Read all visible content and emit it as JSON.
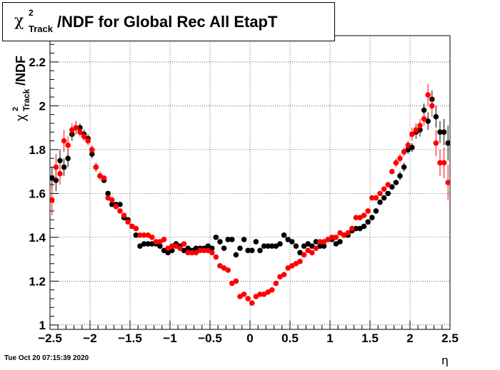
{
  "title": {
    "symbol": "χ",
    "superscript": "2",
    "subscript": "Track",
    "text": "/NDF for Global Rec All EtapT"
  },
  "footer": {
    "date": "Tue Oct 20 07:15:39 2020"
  },
  "chart_data": {
    "type": "scatter",
    "xlabel": "η",
    "ylabel": "χ²_Track/NDF",
    "xlim": [
      -2.5,
      2.5
    ],
    "ylim": [
      0.98,
      2.32
    ],
    "x_ticks": [
      -2.5,
      -2,
      -1.5,
      -1,
      -0.5,
      0,
      0.5,
      1,
      1.5,
      2,
      2.5
    ],
    "x_tick_labels": [
      "−2.5",
      "−2",
      "−1.5",
      "−1",
      "−0.5",
      "0",
      "0.5",
      "1",
      "1.5",
      "2",
      "2.5"
    ],
    "y_ticks": [
      1,
      1.2,
      1.4,
      1.6,
      1.8,
      2,
      2.2
    ],
    "y_tick_labels": [
      "1",
      "1.2",
      "1.4",
      "1.6",
      "1.8",
      "2",
      "2.2"
    ],
    "grid": true,
    "colors": {
      "series_black": "#000000",
      "series_red": "#ff0000",
      "grid": "#000000"
    },
    "series": [
      {
        "color": "#000000",
        "points": [
          [
            -2.475,
            1.67,
            0.05
          ],
          [
            -2.425,
            1.66,
            0.05
          ],
          [
            -2.375,
            1.75,
            0.05
          ],
          [
            -2.325,
            1.72,
            0.04
          ],
          [
            -2.275,
            1.76,
            0.04
          ],
          [
            -2.225,
            1.87,
            0.03
          ],
          [
            -2.175,
            1.9,
            0.03
          ],
          [
            -2.125,
            1.9,
            0.02
          ],
          [
            -2.075,
            1.87,
            0.02
          ],
          [
            -2.025,
            1.85,
            0.02
          ],
          [
            -1.975,
            1.78,
            0.02
          ],
          [
            -1.925,
            1.72,
            0.02
          ],
          [
            -1.875,
            1.68,
            0.02
          ],
          [
            -1.825,
            1.66,
            0.01
          ],
          [
            -1.775,
            1.6,
            0.01
          ],
          [
            -1.725,
            1.55,
            0.01
          ],
          [
            -1.675,
            1.55,
            0.01
          ],
          [
            -1.625,
            1.55,
            0.01
          ],
          [
            -1.575,
            1.49,
            0.01
          ],
          [
            -1.525,
            1.48,
            0.01
          ],
          [
            -1.475,
            1.45,
            0.01
          ],
          [
            -1.425,
            1.41,
            0.01
          ],
          [
            -1.375,
            1.36,
            0.01
          ],
          [
            -1.325,
            1.37,
            0.01
          ],
          [
            -1.275,
            1.37,
            0.01
          ],
          [
            -1.225,
            1.37,
            0.01
          ],
          [
            -1.175,
            1.37,
            0.01
          ],
          [
            -1.125,
            1.36,
            0.01
          ],
          [
            -1.075,
            1.34,
            0.01
          ],
          [
            -1.025,
            1.33,
            0.01
          ],
          [
            -0.975,
            1.34,
            0.01
          ],
          [
            -0.925,
            1.37,
            0.01
          ],
          [
            -0.875,
            1.36,
            0.01
          ],
          [
            -0.825,
            1.34,
            0.01
          ],
          [
            -0.775,
            1.35,
            0.01
          ],
          [
            -0.725,
            1.34,
            0.01
          ],
          [
            -0.675,
            1.35,
            0.01
          ],
          [
            -0.625,
            1.35,
            0.01
          ],
          [
            -0.575,
            1.35,
            0.01
          ],
          [
            -0.525,
            1.36,
            0.01
          ],
          [
            -0.475,
            1.35,
            0.01
          ],
          [
            -0.425,
            1.4,
            0.01
          ],
          [
            -0.375,
            1.38,
            0.01
          ],
          [
            -0.325,
            1.35,
            0.01
          ],
          [
            -0.275,
            1.39,
            0.01
          ],
          [
            -0.225,
            1.39,
            0.01
          ],
          [
            -0.175,
            1.32,
            0.01
          ],
          [
            -0.125,
            1.35,
            0.01
          ],
          [
            -0.075,
            1.39,
            0.01
          ],
          [
            -0.025,
            1.34,
            0.01
          ],
          [
            0.025,
            1.34,
            0.01
          ],
          [
            0.075,
            1.38,
            0.01
          ],
          [
            0.125,
            1.34,
            0.01
          ],
          [
            0.175,
            1.36,
            0.01
          ],
          [
            0.225,
            1.36,
            0.01
          ],
          [
            0.275,
            1.36,
            0.01
          ],
          [
            0.325,
            1.36,
            0.01
          ],
          [
            0.375,
            1.37,
            0.01
          ],
          [
            0.425,
            1.41,
            0.01
          ],
          [
            0.475,
            1.39,
            0.01
          ],
          [
            0.525,
            1.38,
            0.01
          ],
          [
            0.575,
            1.36,
            0.01
          ],
          [
            0.625,
            1.33,
            0.01
          ],
          [
            0.675,
            1.36,
            0.01
          ],
          [
            0.725,
            1.37,
            0.01
          ],
          [
            0.775,
            1.36,
            0.01
          ],
          [
            0.825,
            1.38,
            0.01
          ],
          [
            0.875,
            1.36,
            0.01
          ],
          [
            0.925,
            1.36,
            0.01
          ],
          [
            0.975,
            1.39,
            0.01
          ],
          [
            1.025,
            1.39,
            0.01
          ],
          [
            1.075,
            1.37,
            0.01
          ],
          [
            1.125,
            1.38,
            0.01
          ],
          [
            1.175,
            1.41,
            0.01
          ],
          [
            1.225,
            1.41,
            0.01
          ],
          [
            1.275,
            1.43,
            0.01
          ],
          [
            1.325,
            1.44,
            0.01
          ],
          [
            1.375,
            1.44,
            0.01
          ],
          [
            1.425,
            1.45,
            0.01
          ],
          [
            1.475,
            1.47,
            0.01
          ],
          [
            1.525,
            1.49,
            0.01
          ],
          [
            1.575,
            1.52,
            0.01
          ],
          [
            1.625,
            1.56,
            0.01
          ],
          [
            1.675,
            1.58,
            0.01
          ],
          [
            1.725,
            1.6,
            0.01
          ],
          [
            1.775,
            1.63,
            0.01
          ],
          [
            1.825,
            1.65,
            0.01
          ],
          [
            1.875,
            1.68,
            0.02
          ],
          [
            1.925,
            1.72,
            0.02
          ],
          [
            1.975,
            1.8,
            0.02
          ],
          [
            2.025,
            1.81,
            0.02
          ],
          [
            2.075,
            1.88,
            0.03
          ],
          [
            2.125,
            1.89,
            0.03
          ],
          [
            2.175,
            1.98,
            0.03
          ],
          [
            2.225,
            1.93,
            0.04
          ],
          [
            2.275,
            2.03,
            0.04
          ],
          [
            2.325,
            1.95,
            0.05
          ],
          [
            2.375,
            1.88,
            0.05
          ],
          [
            2.425,
            1.88,
            0.06
          ],
          [
            2.475,
            1.83,
            0.08
          ]
        ]
      },
      {
        "color": "#ff0000",
        "points": [
          [
            -2.475,
            1.57,
            0.07
          ],
          [
            -2.425,
            1.72,
            0.06
          ],
          [
            -2.375,
            1.69,
            0.05
          ],
          [
            -2.325,
            1.84,
            0.05
          ],
          [
            -2.275,
            1.82,
            0.04
          ],
          [
            -2.225,
            1.89,
            0.03
          ],
          [
            -2.175,
            1.9,
            0.03
          ],
          [
            -2.125,
            1.88,
            0.02
          ],
          [
            -2.075,
            1.86,
            0.02
          ],
          [
            -2.025,
            1.84,
            0.02
          ],
          [
            -1.975,
            1.8,
            0.02
          ],
          [
            -1.925,
            1.72,
            0.02
          ],
          [
            -1.875,
            1.68,
            0.02
          ],
          [
            -1.825,
            1.67,
            0.01
          ],
          [
            -1.775,
            1.58,
            0.01
          ],
          [
            -1.725,
            1.57,
            0.01
          ],
          [
            -1.675,
            1.54,
            0.01
          ],
          [
            -1.625,
            1.52,
            0.01
          ],
          [
            -1.575,
            1.5,
            0.01
          ],
          [
            -1.525,
            1.47,
            0.01
          ],
          [
            -1.475,
            1.45,
            0.01
          ],
          [
            -1.425,
            1.44,
            0.01
          ],
          [
            -1.375,
            1.41,
            0.01
          ],
          [
            -1.325,
            1.41,
            0.01
          ],
          [
            -1.275,
            1.41,
            0.01
          ],
          [
            -1.225,
            1.4,
            0.01
          ],
          [
            -1.175,
            1.38,
            0.01
          ],
          [
            -1.125,
            1.38,
            0.01
          ],
          [
            -1.075,
            1.39,
            0.01
          ],
          [
            -1.025,
            1.35,
            0.01
          ],
          [
            -0.975,
            1.36,
            0.01
          ],
          [
            -0.925,
            1.36,
            0.01
          ],
          [
            -0.875,
            1.35,
            0.01
          ],
          [
            -0.825,
            1.37,
            0.01
          ],
          [
            -0.775,
            1.33,
            0.01
          ],
          [
            -0.725,
            1.33,
            0.01
          ],
          [
            -0.675,
            1.33,
            0.01
          ],
          [
            -0.625,
            1.34,
            0.01
          ],
          [
            -0.575,
            1.34,
            0.01
          ],
          [
            -0.525,
            1.34,
            0.01
          ],
          [
            -0.475,
            1.33,
            0.01
          ],
          [
            -0.425,
            1.31,
            0.01
          ],
          [
            -0.375,
            1.27,
            0.01
          ],
          [
            -0.325,
            1.26,
            0.01
          ],
          [
            -0.275,
            1.25,
            0.01
          ],
          [
            -0.225,
            1.19,
            0.01
          ],
          [
            -0.175,
            1.2,
            0.01
          ],
          [
            -0.125,
            1.13,
            0.01
          ],
          [
            -0.075,
            1.14,
            0.01
          ],
          [
            -0.025,
            1.12,
            0.01
          ],
          [
            0.025,
            1.1,
            0.01
          ],
          [
            0.075,
            1.13,
            0.01
          ],
          [
            0.125,
            1.14,
            0.01
          ],
          [
            0.175,
            1.14,
            0.01
          ],
          [
            0.225,
            1.15,
            0.01
          ],
          [
            0.275,
            1.16,
            0.01
          ],
          [
            0.325,
            1.19,
            0.01
          ],
          [
            0.375,
            1.22,
            0.01
          ],
          [
            0.425,
            1.23,
            0.01
          ],
          [
            0.475,
            1.26,
            0.01
          ],
          [
            0.525,
            1.27,
            0.01
          ],
          [
            0.575,
            1.28,
            0.01
          ],
          [
            0.625,
            1.29,
            0.01
          ],
          [
            0.675,
            1.32,
            0.01
          ],
          [
            0.725,
            1.34,
            0.01
          ],
          [
            0.775,
            1.33,
            0.01
          ],
          [
            0.825,
            1.35,
            0.01
          ],
          [
            0.875,
            1.38,
            0.01
          ],
          [
            0.925,
            1.38,
            0.01
          ],
          [
            0.975,
            1.39,
            0.01
          ],
          [
            1.025,
            1.4,
            0.01
          ],
          [
            1.075,
            1.4,
            0.01
          ],
          [
            1.125,
            1.42,
            0.01
          ],
          [
            1.175,
            1.41,
            0.01
          ],
          [
            1.225,
            1.42,
            0.01
          ],
          [
            1.275,
            1.44,
            0.01
          ],
          [
            1.325,
            1.49,
            0.01
          ],
          [
            1.375,
            1.49,
            0.01
          ],
          [
            1.425,
            1.5,
            0.01
          ],
          [
            1.475,
            1.52,
            0.01
          ],
          [
            1.525,
            1.58,
            0.01
          ],
          [
            1.575,
            1.58,
            0.01
          ],
          [
            1.625,
            1.6,
            0.01
          ],
          [
            1.675,
            1.62,
            0.01
          ],
          [
            1.725,
            1.64,
            0.01
          ],
          [
            1.775,
            1.7,
            0.01
          ],
          [
            1.825,
            1.74,
            0.02
          ],
          [
            1.875,
            1.76,
            0.02
          ],
          [
            1.925,
            1.79,
            0.02
          ],
          [
            1.975,
            1.82,
            0.02
          ],
          [
            2.025,
            1.87,
            0.03
          ],
          [
            2.075,
            1.89,
            0.03
          ],
          [
            2.125,
            1.91,
            0.03
          ],
          [
            2.175,
            1.94,
            0.03
          ],
          [
            2.225,
            2.05,
            0.05
          ],
          [
            2.275,
            2.0,
            0.05
          ],
          [
            2.325,
            1.83,
            0.06
          ],
          [
            2.375,
            1.74,
            0.06
          ],
          [
            2.425,
            1.74,
            0.07
          ],
          [
            2.475,
            1.65,
            0.08
          ]
        ]
      }
    ]
  }
}
